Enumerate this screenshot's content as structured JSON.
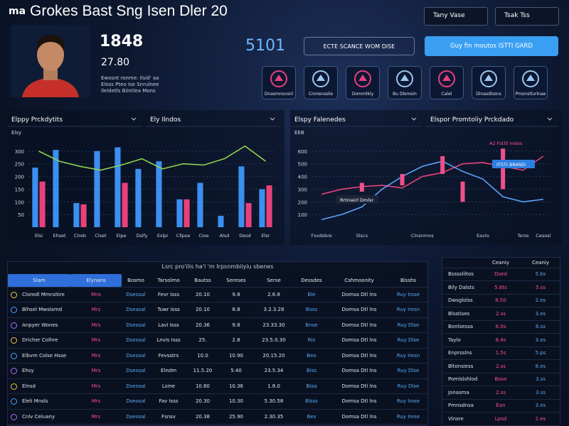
{
  "header": {
    "logo": "ma",
    "title": "Grokes Bast Sng Isen Dler 20",
    "menu": [
      "Tany Vase",
      "Tsak Tss"
    ]
  },
  "profile": {
    "score": "1848",
    "sub": "27.80",
    "notes": [
      "Ewosnt ronme: Ilsid' aa",
      "Eloss Pteo Ise  Snrulnee",
      "Ileldetls Biintlea Mons"
    ]
  },
  "kpi": "5101",
  "buttons": [
    "ECTE SCANCE WOM DISE",
    "Guy fin moutos ISTTI GARD"
  ],
  "icons": [
    "Dnasmnsvsnl",
    "Cnmsnsslie",
    "Dommlkly",
    "Bu Dlsmsin",
    "Calel",
    "Dinasdlssns",
    "Pmsnstlurlnae"
  ],
  "charts": [
    {
      "type": "bar",
      "titles": [
        "Elppy Prckdytits",
        "Ely Ilndos"
      ],
      "y_label": "Elsy",
      "categories": [
        "Elsi",
        "Ehset",
        "Clreb",
        "Clset",
        "Elpe",
        "Dslfy",
        "Eslpi",
        "Cllpse",
        "Cioe",
        "Alsd",
        "Desd",
        "Elsr"
      ],
      "ylim": [
        0,
        350
      ],
      "yticks": [
        50,
        100,
        150,
        200,
        250,
        300
      ],
      "grid": true,
      "series": [
        {
          "type": "bar",
          "color": "#3b8ff0",
          "values": [
            235,
            305,
            95,
            300,
            315,
            230,
            260,
            110,
            175,
            45,
            240,
            150
          ]
        },
        {
          "type": "bar",
          "color": "#e8407a",
          "values": [
            180,
            null,
            90,
            null,
            175,
            null,
            null,
            110,
            null,
            null,
            95,
            165
          ]
        },
        {
          "type": "line",
          "color": "#8fd14f",
          "values": [
            300,
            260,
            240,
            225,
            245,
            270,
            230,
            250,
            245,
            270,
            320,
            260
          ]
        }
      ]
    },
    {
      "type": "line",
      "titles": [
        "Elspy Falenedes",
        "Elspor Promtoliy Prckdado"
      ],
      "y_label": "EEB",
      "categories": [
        "Fsvdsbre",
        null,
        "Slscs",
        null,
        null,
        "Clnsnmns",
        null,
        null,
        "Eavlo",
        null,
        "Terss",
        "Cesosl"
      ],
      "ylim": [
        0,
        700
      ],
      "yticks": [
        100,
        200,
        300,
        400,
        500,
        600
      ],
      "grid": true,
      "series": [
        {
          "type": "line",
          "color": "#e8407a",
          "values": [
            260,
            300,
            320,
            330,
            310,
            400,
            430,
            500,
            510,
            480,
            450,
            560
          ]
        },
        {
          "type": "line",
          "color": "#5aa2f5",
          "values": [
            60,
            100,
            160,
            300,
            400,
            480,
            520,
            440,
            380,
            240,
            200,
            220
          ]
        },
        {
          "type": "candle",
          "color": "#f0508a",
          "low": [
            null,
            null,
            280,
            null,
            330,
            null,
            420,
            200,
            null,
            300,
            null,
            null
          ],
          "high": [
            null,
            null,
            350,
            null,
            420,
            null,
            560,
            360,
            null,
            620,
            null,
            null
          ]
        }
      ],
      "annotations": [
        "Rrtnieirl Dmlsr",
        "ITSTI BRAND",
        "A2 Fstltl Indas"
      ]
    }
  ],
  "table": {
    "caption": "Lsrc pro'ilis ha'l 'm Irpsnmbiiyiu sbenes",
    "columns": [
      "Slam",
      "Elynans",
      "Bosmo",
      "Tarsolmo",
      "Bautss",
      "Sereses",
      "Serse",
      "Dessdes",
      "Cshmoonity",
      "Bisshs"
    ],
    "rows": [
      [
        "Cloredl Mmrsitire",
        "Mns",
        "Dseosal",
        "Fevr Isss",
        "20.10",
        "9.8",
        "2.6.8",
        "Ble",
        "Domsa Dtl lns",
        "Ruy lrose"
      ],
      [
        "Blhsel Mwslamd",
        "Mrs",
        "Dseasal",
        "Tuwr Isss",
        "20.10",
        "8.8",
        "3.2.3.28",
        "Boss",
        "Domsa Dtl lns",
        "Ruy lresn"
      ],
      [
        "Anpyer Wones",
        "Mrs",
        "Dseosal",
        "Lavi Isss",
        "20.36",
        "9.8",
        "23.33.30",
        "Bnse",
        "Domsa Dtl lns",
        "Ruy Dlse"
      ],
      [
        "Dricher Colhre",
        "Mrs",
        "Dseosal",
        "Lnvis Isss",
        "25.",
        "2.8",
        "23.5.0.30",
        "Ris",
        "Domsa Dtl lns",
        "Ruy Dlse"
      ],
      [
        "Elbvm Colse Hsse",
        "Mrs",
        "Dseosal",
        "Fevsstrs",
        "10.0",
        "10.90",
        "20.15.20",
        "Beo",
        "Domsa Dtl lns",
        "Ruy lresn"
      ],
      [
        "Ehsy",
        "Mrs",
        "Dseosal",
        "Elndm",
        "11.5.20",
        "5.40",
        "23.5.34",
        "Biss",
        "Domsa Dtl lns",
        "Ruy Dlse"
      ],
      [
        "Elnsd",
        "Mrs",
        "Dseosal",
        "Lsine",
        "10.60",
        "10.36",
        "1.8.0",
        "Blaa",
        "Domsa Dtl lns",
        "Ruy Dlse"
      ],
      [
        "Eleli Mnsls",
        "Mrs",
        "Dseosal",
        "Fav Isss",
        "20.30",
        "10.30",
        "5.30.58",
        "Blsss",
        "Domsa Dtl lns",
        "Ruy lrose"
      ],
      [
        "Cnlv Celuany",
        "Mrs",
        "Dseosal",
        "Fsnsv",
        "20.38",
        "25.90",
        "2.30.35",
        "Bes",
        "Domsa Dtl lns",
        "Ruy lrese"
      ]
    ]
  },
  "side_table": {
    "columns": [
      "Ceaniy",
      "Ceaniy"
    ],
    "rows": [
      [
        "Bssssliitos",
        "Dsed",
        "5.bs"
      ],
      [
        "Bily Dalsts",
        "5.6ts",
        "5.ss"
      ],
      [
        "Dwsglolss",
        "8.50",
        "2.es"
      ],
      [
        "Blsstises",
        "2.ss",
        "3.es"
      ],
      [
        "Bonlsessa",
        "8.0s",
        "6.ss"
      ],
      [
        "Taylo",
        "8.4s",
        "3.es"
      ],
      [
        "Enprsslns",
        "1.5s",
        "5.ps"
      ],
      [
        "Bltonsiess",
        "2.ss",
        "8.es"
      ],
      [
        "Pomislshlod",
        "Bose",
        "3.ss"
      ],
      [
        "Jonasma",
        "2.ss",
        "3.ss"
      ],
      [
        "Pmnsdnsa",
        "Ean",
        "3.es"
      ],
      [
        "Vinsre",
        "Lpsd",
        "2.es"
      ]
    ]
  }
}
